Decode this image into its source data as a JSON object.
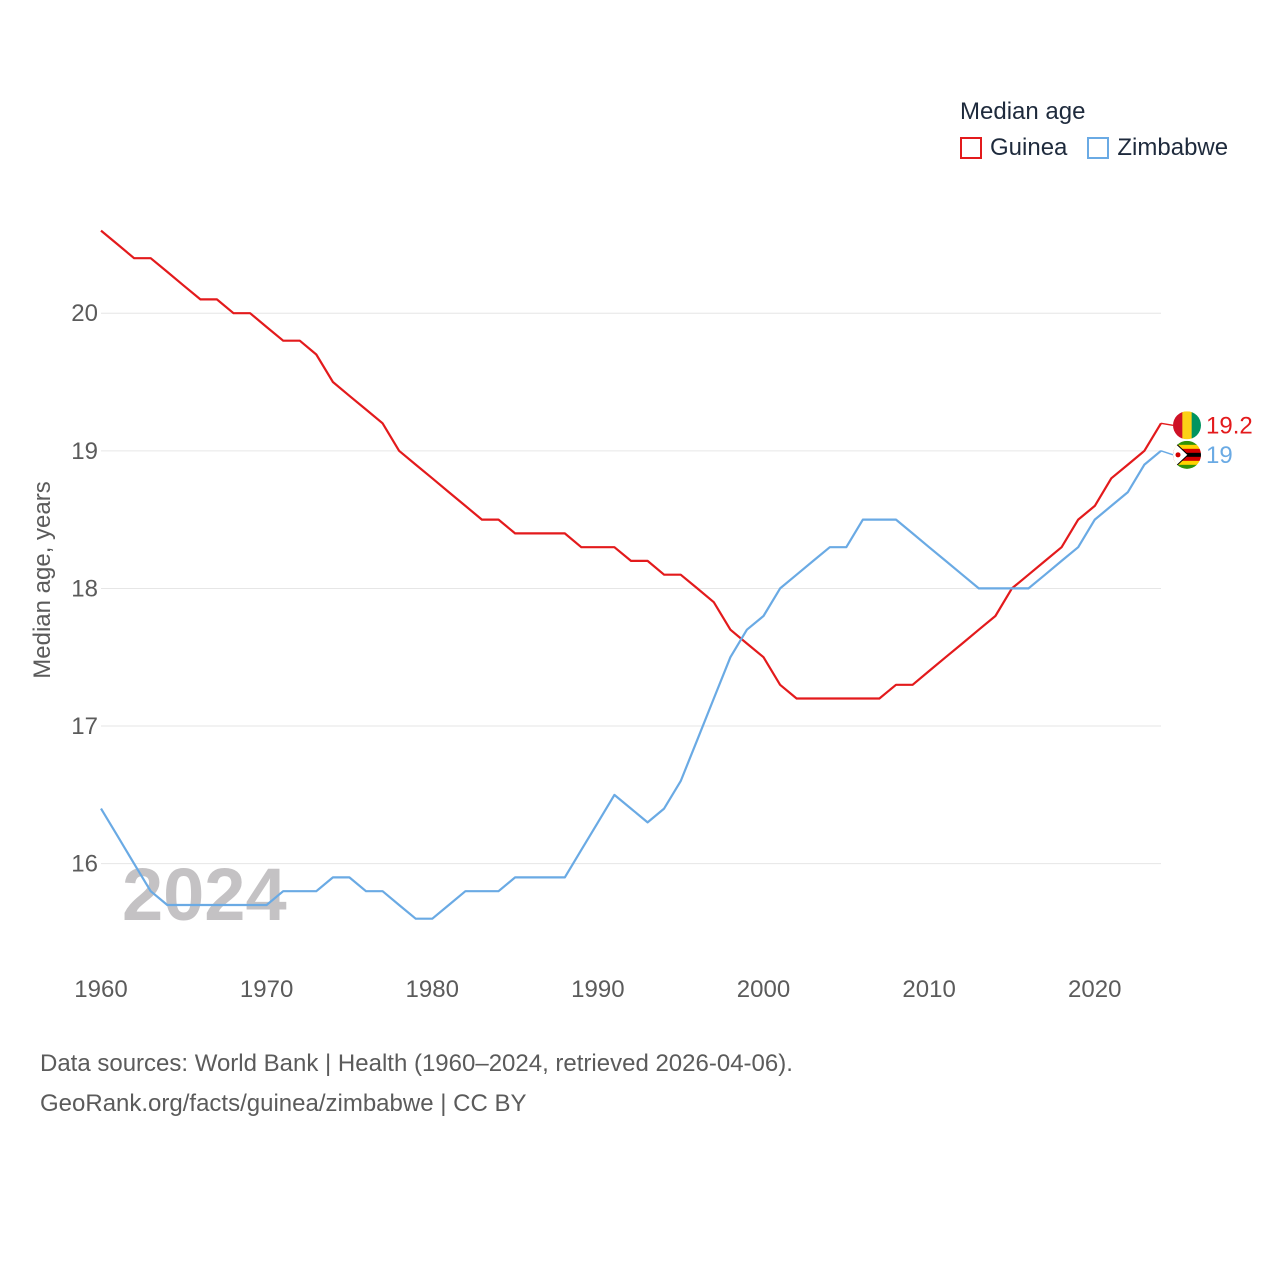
{
  "chart_data": {
    "type": "line",
    "title": "Median age",
    "ylabel": "Median age, years",
    "xlabel": "",
    "xlim": [
      1960,
      2024
    ],
    "ylim": [
      15.3,
      20.75
    ],
    "x_ticks": [
      1960,
      1970,
      1980,
      1990,
      2000,
      2010,
      2020
    ],
    "y_ticks": [
      16,
      17,
      18,
      19,
      20
    ],
    "watermark_year": "2024",
    "x": [
      1960,
      1961,
      1962,
      1963,
      1964,
      1965,
      1966,
      1967,
      1968,
      1969,
      1970,
      1971,
      1972,
      1973,
      1974,
      1975,
      1976,
      1977,
      1978,
      1979,
      1980,
      1981,
      1982,
      1983,
      1984,
      1985,
      1986,
      1987,
      1988,
      1989,
      1990,
      1991,
      1992,
      1993,
      1994,
      1995,
      1996,
      1997,
      1998,
      1999,
      2000,
      2001,
      2002,
      2003,
      2004,
      2005,
      2006,
      2007,
      2008,
      2009,
      2010,
      2011,
      2012,
      2013,
      2014,
      2015,
      2016,
      2017,
      2018,
      2019,
      2020,
      2021,
      2022,
      2023,
      2024
    ],
    "series": [
      {
        "name": "Guinea",
        "color": "#e31a1c",
        "end_label": "19.2",
        "values": [
          20.6,
          20.5,
          20.4,
          20.4,
          20.3,
          20.2,
          20.1,
          20.1,
          20.0,
          20.0,
          19.9,
          19.8,
          19.8,
          19.7,
          19.5,
          19.4,
          19.3,
          19.2,
          19.0,
          18.9,
          18.8,
          18.7,
          18.6,
          18.5,
          18.5,
          18.4,
          18.4,
          18.4,
          18.4,
          18.3,
          18.3,
          18.3,
          18.2,
          18.2,
          18.1,
          18.1,
          18.0,
          17.9,
          17.7,
          17.6,
          17.5,
          17.3,
          17.2,
          17.2,
          17.2,
          17.2,
          17.2,
          17.2,
          17.3,
          17.3,
          17.4,
          17.5,
          17.6,
          17.7,
          17.8,
          18.0,
          18.1,
          18.2,
          18.3,
          18.5,
          18.6,
          18.8,
          18.9,
          19.0,
          19.2
        ]
      },
      {
        "name": "Zimbabwe",
        "color": "#6aaae4",
        "end_label": "19",
        "values": [
          16.4,
          16.2,
          16.0,
          15.8,
          15.7,
          15.7,
          15.7,
          15.7,
          15.7,
          15.7,
          15.7,
          15.8,
          15.8,
          15.8,
          15.9,
          15.9,
          15.8,
          15.8,
          15.7,
          15.6,
          15.6,
          15.7,
          15.8,
          15.8,
          15.8,
          15.9,
          15.9,
          15.9,
          15.9,
          16.1,
          16.3,
          16.5,
          16.4,
          16.3,
          16.4,
          16.6,
          16.9,
          17.2,
          17.5,
          17.7,
          17.8,
          18.0,
          18.1,
          18.2,
          18.3,
          18.3,
          18.5,
          18.5,
          18.5,
          18.4,
          18.3,
          18.2,
          18.1,
          18.0,
          18.0,
          18.0,
          18.0,
          18.1,
          18.2,
          18.3,
          18.5,
          18.6,
          18.7,
          18.9,
          19.0
        ]
      }
    ]
  },
  "legend": {
    "title": "Median age",
    "items": [
      {
        "name": "Guinea",
        "color": "#e31a1c"
      },
      {
        "name": "Zimbabwe",
        "color": "#6aaae4"
      }
    ]
  },
  "footer": {
    "line1": "Data sources: World Bank | Health (1960–2024, retrieved 2026-04-06).",
    "line2": "GeoRank.org/facts/guinea/zimbabwe | CC BY"
  },
  "flags": [
    {
      "country": "Guinea",
      "icon": "guinea-flag-icon",
      "colors": [
        "#ce1126",
        "#fcd116",
        "#009460"
      ]
    },
    {
      "country": "Zimbabwe",
      "icon": "zimbabwe-flag-icon",
      "colors": [
        "#319208",
        "#ffd200",
        "#d40000",
        "#000000",
        "#ffffff"
      ]
    }
  ]
}
